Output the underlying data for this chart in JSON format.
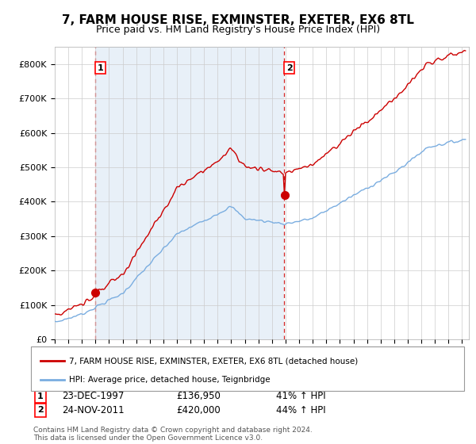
{
  "title": "7, FARM HOUSE RISE, EXMINSTER, EXETER, EX6 8TL",
  "subtitle": "Price paid vs. HM Land Registry's House Price Index (HPI)",
  "title_fontsize": 11,
  "subtitle_fontsize": 9,
  "ylim": [
    0,
    850000
  ],
  "yticks": [
    0,
    100000,
    200000,
    300000,
    400000,
    500000,
    600000,
    700000,
    800000
  ],
  "ytick_labels": [
    "£0",
    "£100K",
    "£200K",
    "£300K",
    "£400K",
    "£500K",
    "£600K",
    "£700K",
    "£800K"
  ],
  "sale1_price": 136950,
  "sale1_label": "23-DEC-1997",
  "sale1_pct": "41%",
  "sale1_t": 1997.978,
  "sale2_price": 420000,
  "sale2_label": "24-NOV-2011",
  "sale2_pct": "44%",
  "sale2_t": 2011.896,
  "legend_line1": "7, FARM HOUSE RISE, EXMINSTER, EXETER, EX6 8TL (detached house)",
  "legend_line2": "HPI: Average price, detached house, Teignbridge",
  "footnote": "Contains HM Land Registry data © Crown copyright and database right 2024.\nThis data is licensed under the Open Government Licence v3.0.",
  "line_color_red": "#cc0000",
  "line_color_blue": "#7aade0",
  "bg_color": "#ffffff",
  "bg_band_color": "#e8f0f8",
  "grid_color": "#cccccc"
}
